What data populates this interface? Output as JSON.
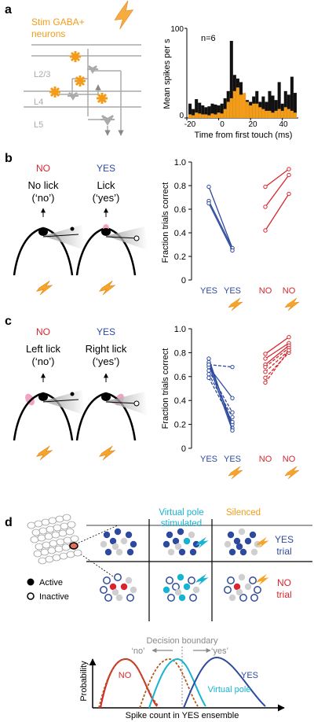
{
  "panel_a": {
    "letter": "a",
    "stim_line1": "Stim GABA+",
    "stim_line2": "neurons",
    "layer1": "L2/3",
    "layer2": "L4",
    "layer3": "L5",
    "n_label": "n=6",
    "ylabel": "Mean spikes per s",
    "xlabel": "Time from first touch (ms)",
    "yticks": [
      "0",
      "100"
    ],
    "xticks": [
      "-20",
      "0",
      "20",
      "40"
    ]
  },
  "panel_b": {
    "letter": "b",
    "no_label": "NO",
    "yes_label": "YES",
    "left_line1": "No lick",
    "left_line2": "(‘no’)",
    "right_line1": "Lick",
    "right_line2": "(‘yes’)",
    "ylabel": "Fraction trials correct",
    "yticks": [
      "0",
      "0.2",
      "0.4",
      "0.6",
      "0.8",
      "1.0"
    ],
    "xticks": [
      "YES",
      "YES",
      "NO",
      "NO"
    ]
  },
  "panel_c": {
    "letter": "c",
    "no_label": "NO",
    "yes_label": "YES",
    "left_line1": "Left lick",
    "left_line2": "(‘no’)",
    "right_line1": "Right lick",
    "right_line2": "(‘yes’)",
    "ylabel": "Fraction trials correct",
    "yticks": [
      "0",
      "0.2",
      "0.4",
      "0.6",
      "0.8",
      "1.0"
    ],
    "xticks": [
      "YES",
      "YES",
      "NO",
      "NO"
    ]
  },
  "panel_d": {
    "letter": "d",
    "col2_line1": "Virtual pole",
    "col2_line2": "stimulated",
    "col3": "Silenced",
    "row1_line1": "YES",
    "row1_line2": "trial",
    "row2_line1": "NO",
    "row2_line2": "trial",
    "legend_active": "Active",
    "legend_inactive": "Inactive",
    "decision": "Decision boundary",
    "no_q": "‘no’",
    "yes_q": "‘yes’",
    "curve_no": "NO",
    "curve_yes": "YES",
    "curve_vp": "Virtual pole",
    "ylabel": "Probability",
    "xlabel": "Spike count in YES ensemble"
  },
  "colors": {
    "orange": "#f39c1a",
    "blue": "#2e4a9e",
    "red": "#d7262d",
    "cyan": "#17b3d2",
    "gray": "#b3b3b3",
    "dashed_brown": "#b8561e"
  },
  "chart_data": [
    {
      "type": "bar",
      "panel": "a",
      "xlabel": "Time from first touch (ms)",
      "ylabel": "Mean spikes per s",
      "xlim": [
        -20,
        50
      ],
      "ylim": [
        0,
        100
      ],
      "annotation": "n=6",
      "x": [
        -18,
        -16,
        -14,
        -12,
        -10,
        -8,
        -6,
        -4,
        -2,
        0,
        2,
        4,
        6,
        8,
        10,
        12,
        14,
        16,
        18,
        20,
        22,
        24,
        26,
        28,
        30,
        32,
        34,
        36,
        38,
        40,
        42,
        44,
        46,
        48
      ],
      "series": [
        {
          "color": "#111111",
          "values": [
            16,
            10,
            21,
            17,
            14,
            12,
            13,
            16,
            15,
            14,
            16,
            22,
            30,
            86,
            48,
            44,
            40,
            26,
            20,
            18,
            24,
            30,
            18,
            24,
            18,
            30,
            25,
            20,
            40,
            16,
            30,
            26,
            46,
            28
          ]
        },
        {
          "color": "#f39c1a",
          "values": [
            4,
            3,
            6,
            5,
            4,
            4,
            3,
            5,
            4,
            6,
            5,
            10,
            18,
            22,
            30,
            34,
            26,
            28,
            18,
            14,
            16,
            16,
            12,
            10,
            8,
            8,
            6,
            8,
            10,
            8,
            12,
            10,
            8,
            6
          ]
        }
      ]
    },
    {
      "type": "line",
      "panel": "b",
      "ylabel": "Fraction trials correct",
      "ylim": [
        0,
        1.0
      ],
      "categories": [
        "YES",
        "YES",
        "NO",
        "NO"
      ],
      "pairs": [
        {
          "color": "#2e4a9e",
          "from": 0,
          "to": 1,
          "values": [
            0.79,
            0.27
          ],
          "dashed": false
        },
        {
          "color": "#2e4a9e",
          "from": 0,
          "to": 1,
          "values": [
            0.67,
            0.27
          ],
          "dashed": false
        },
        {
          "color": "#2e4a9e",
          "from": 0,
          "to": 1,
          "values": [
            0.65,
            0.25
          ],
          "dashed": false
        },
        {
          "color": "#d7262d",
          "from": 2,
          "to": 3,
          "values": [
            0.79,
            0.94
          ],
          "dashed": false
        },
        {
          "color": "#d7262d",
          "from": 2,
          "to": 3,
          "values": [
            0.62,
            0.89
          ],
          "dashed": false
        },
        {
          "color": "#d7262d",
          "from": 2,
          "to": 3,
          "values": [
            0.42,
            0.73
          ],
          "dashed": false
        }
      ]
    },
    {
      "type": "line",
      "panel": "c",
      "ylabel": "Fraction trials correct",
      "ylim": [
        0,
        1.0
      ],
      "categories": [
        "YES",
        "YES",
        "NO",
        "NO"
      ],
      "pairs": [
        {
          "color": "#2e4a9e",
          "from": 0,
          "to": 1,
          "values": [
            0.75,
            0.17
          ],
          "dashed": false
        },
        {
          "color": "#2e4a9e",
          "from": 0,
          "to": 1,
          "values": [
            0.72,
            0.2
          ],
          "dashed": false
        },
        {
          "color": "#2e4a9e",
          "from": 0,
          "to": 1,
          "values": [
            0.7,
            0.15
          ],
          "dashed": false
        },
        {
          "color": "#2e4a9e",
          "from": 0,
          "to": 1,
          "values": [
            0.68,
            0.42
          ],
          "dashed": false
        },
        {
          "color": "#2e4a9e",
          "from": 0,
          "to": 1,
          "values": [
            0.7,
            0.68
          ],
          "dashed": true
        },
        {
          "color": "#2e4a9e",
          "from": 0,
          "to": 1,
          "values": [
            0.65,
            0.3
          ],
          "dashed": true
        },
        {
          "color": "#2e4a9e",
          "from": 0,
          "to": 1,
          "values": [
            0.62,
            0.26
          ],
          "dashed": true
        },
        {
          "color": "#2e4a9e",
          "from": 0,
          "to": 1,
          "values": [
            0.59,
            0.22
          ],
          "dashed": true
        },
        {
          "color": "#d7262d",
          "from": 2,
          "to": 3,
          "values": [
            0.79,
            0.93
          ],
          "dashed": false
        },
        {
          "color": "#d7262d",
          "from": 2,
          "to": 3,
          "values": [
            0.75,
            0.88
          ],
          "dashed": false
        },
        {
          "color": "#d7262d",
          "from": 2,
          "to": 3,
          "values": [
            0.7,
            0.86
          ],
          "dashed": false
        },
        {
          "color": "#d7262d",
          "from": 2,
          "to": 3,
          "values": [
            0.68,
            0.84
          ],
          "dashed": true
        },
        {
          "color": "#d7262d",
          "from": 2,
          "to": 3,
          "values": [
            0.64,
            0.82
          ],
          "dashed": true
        },
        {
          "color": "#d7262d",
          "from": 2,
          "to": 3,
          "values": [
            0.59,
            0.8
          ],
          "dashed": true
        },
        {
          "color": "#d7262d",
          "from": 2,
          "to": 3,
          "values": [
            0.55,
            0.82
          ],
          "dashed": true
        }
      ]
    }
  ]
}
